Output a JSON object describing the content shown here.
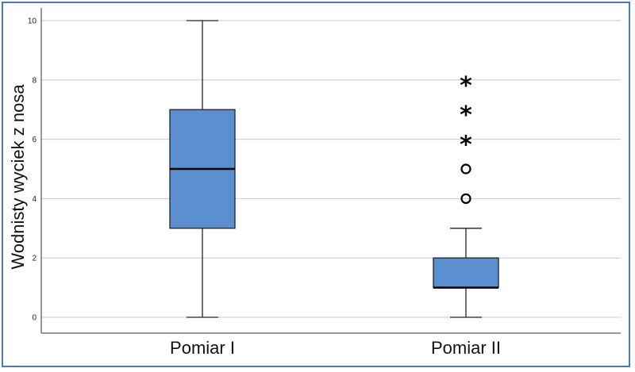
{
  "chart_data": {
    "type": "boxplot",
    "title": "",
    "xlabel": "",
    "ylabel": "Wodnisty wyciek z nosa",
    "ylim": [
      0,
      10
    ],
    "yticks": [
      "0",
      "2",
      "4",
      "6",
      "8",
      "10"
    ],
    "grid": true,
    "box_color": "#5b8fcf",
    "categories": [
      "Pomiar I",
      "Pomiar II"
    ],
    "boxes": [
      {
        "name": "Pomiar I",
        "min": 0,
        "q1": 3,
        "median": 5,
        "q3": 7,
        "max": 10,
        "outliers": [],
        "extremes": []
      },
      {
        "name": "Pomiar II",
        "min": 0,
        "q1": 1,
        "median": 1,
        "q3": 2,
        "max": 3,
        "outliers": [
          4,
          5
        ],
        "extremes": [
          6,
          7,
          8
        ]
      }
    ]
  }
}
